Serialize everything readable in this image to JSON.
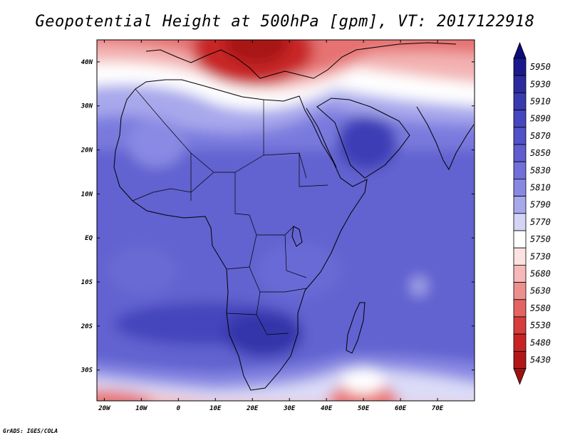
{
  "title": "Geopotential Height at 500hPa [gpm], VT: 2017122918",
  "footer": "GrADS: IGES/COLA",
  "chart_data": {
    "type": "heatmap",
    "variable": "Geopotential Height",
    "level": "500hPa",
    "units": "gpm",
    "valid_time": "2017122918",
    "lon_range": [
      -22,
      80
    ],
    "lat_range": [
      -37,
      45
    ],
    "x_ticks": [
      {
        "value": -20,
        "label": "20W"
      },
      {
        "value": -10,
        "label": "10W"
      },
      {
        "value": 0,
        "label": "0"
      },
      {
        "value": 10,
        "label": "10E"
      },
      {
        "value": 20,
        "label": "20E"
      },
      {
        "value": 30,
        "label": "30E"
      },
      {
        "value": 40,
        "label": "40E"
      },
      {
        "value": 50,
        "label": "50E"
      },
      {
        "value": 60,
        "label": "60E"
      },
      {
        "value": 70,
        "label": "70E"
      }
    ],
    "y_ticks": [
      {
        "value": 40,
        "label": "40N"
      },
      {
        "value": 30,
        "label": "30N"
      },
      {
        "value": 20,
        "label": "20N"
      },
      {
        "value": 10,
        "label": "10N"
      },
      {
        "value": 0,
        "label": "EQ"
      },
      {
        "value": -10,
        "label": "10S"
      },
      {
        "value": -20,
        "label": "20S"
      },
      {
        "value": -30,
        "label": "30S"
      }
    ],
    "colorbar": {
      "extend": "both",
      "labels": [
        "5950",
        "5930",
        "5910",
        "5890",
        "5870",
        "5850",
        "5830",
        "5810",
        "5790",
        "5770",
        "5750",
        "5730",
        "5680",
        "5630",
        "5580",
        "5530",
        "5480",
        "5430"
      ],
      "colors": [
        "#1a1a8c",
        "#2b2b9e",
        "#3a3ab0",
        "#4646bf",
        "#5151c8",
        "#5e5ed0",
        "#7070da",
        "#8888e3",
        "#a8a8ec",
        "#d4d4f6",
        "#ffffff",
        "#fce2e2",
        "#f6b8b8",
        "#ee8f8f",
        "#e46464",
        "#d83d3d",
        "#c82424",
        "#b01818"
      ],
      "top_arrow_color": "#0c0c7a",
      "bottom_arrow_color": "#a01010"
    },
    "field_features": [
      {
        "name": "low-height trough (Mediterranean)",
        "lon": 22,
        "lat": 41,
        "value": 5430
      },
      {
        "name": "high-height ridge (Arabia)",
        "lon": 44,
        "lat": 21,
        "value": 5890
      },
      {
        "name": "high-height ridge (Southern Africa)",
        "lon": 22,
        "lat": -20,
        "value": 5910
      },
      {
        "name": "low-height trough (south of Madagascar)",
        "lon": 52,
        "lat": -36,
        "value": 5680
      },
      {
        "name": "low-height trough (southwest Atlantic)",
        "lon": -15,
        "lat": -37,
        "value": 5680
      }
    ]
  }
}
